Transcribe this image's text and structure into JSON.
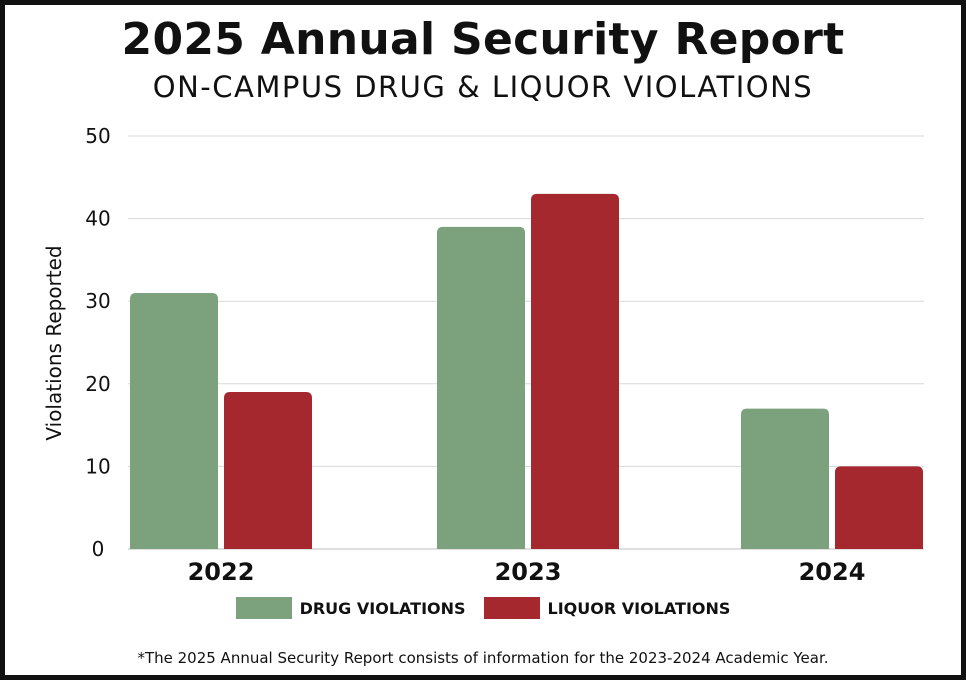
{
  "header": {
    "title": "2025 Annual Security Report",
    "subtitle": "ON-CAMPUS DRUG & LIQUOR VIOLATIONS"
  },
  "footnote": "*The 2025 Annual Security Report consists of information for the 2023-2024 Academic Year.",
  "colors": {
    "drug": "#7ba17d",
    "liquor": "#a4282e",
    "gridline": "#d9d9d9",
    "text": "#111111"
  },
  "chart_data": {
    "type": "bar",
    "title": "2025 Annual Security Report",
    "subtitle": "ON-CAMPUS DRUG & LIQUOR VIOLATIONS",
    "xlabel": "",
    "ylabel": "Violations Reported",
    "categories": [
      "2022",
      "2023",
      "2024"
    ],
    "ylim": [
      0,
      50
    ],
    "yticks": [
      0,
      10,
      20,
      30,
      40,
      50
    ],
    "grid": true,
    "legend_position": "bottom",
    "series": [
      {
        "name": "DRUG VIOLATIONS",
        "values": [
          31,
          39,
          17
        ]
      },
      {
        "name": "LIQUOR VIOLATIONS",
        "values": [
          19,
          43,
          10
        ]
      }
    ]
  }
}
